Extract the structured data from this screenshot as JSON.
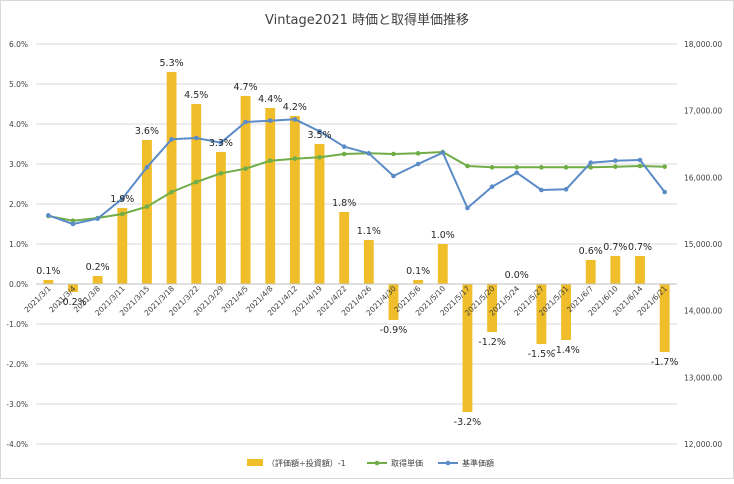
{
  "chart_data": {
    "type": "bar",
    "title": "Vintage2021 時価と取得単価推移",
    "categories": [
      "2021/3/1",
      "2021/3/4",
      "2021/3/8",
      "2021/3/11",
      "2021/3/15",
      "2021/3/18",
      "2021/3/22",
      "2021/3/29",
      "2021/4/5",
      "2021/4/8",
      "2021/4/12",
      "2021/4/19",
      "2021/4/22",
      "2021/4/26",
      "2021/4/30",
      "2021/5/6",
      "2021/5/10",
      "2021/5/17",
      "2021/5/20",
      "2021/5/24",
      "2021/5/27",
      "2021/5/31",
      "2021/6/7",
      "2021/6/10",
      "2021/6/14",
      "2021/6/21"
    ],
    "y_left": {
      "ylim": [
        -4.0,
        6.0
      ],
      "ticks": [
        "-4.0%",
        "-3.0%",
        "-2.0%",
        "-1.0%",
        "0.0%",
        "1.0%",
        "2.0%",
        "3.0%",
        "4.0%",
        "5.0%",
        "6.0%"
      ]
    },
    "y_right": {
      "ylim": [
        12000,
        18000
      ],
      "ticks": [
        "12,000.00",
        "13,000.00",
        "14,000.00",
        "15,000.00",
        "16,000.00",
        "17,000.00",
        "18,000.00"
      ]
    },
    "grid": true,
    "legend_position": "bottom",
    "series": [
      {
        "name": "（評価額÷投資額）-1",
        "type": "bar",
        "axis": "left",
        "color": "#f0be2a",
        "values": [
          0.1,
          -0.2,
          0.2,
          1.9,
          3.6,
          5.3,
          4.5,
          3.3,
          4.7,
          4.4,
          4.2,
          3.5,
          1.8,
          1.1,
          -0.9,
          0.1,
          1.0,
          -3.2,
          -1.2,
          0.0,
          -1.5,
          -1.4,
          0.6,
          0.7,
          0.7,
          -1.7
        ],
        "labels": [
          "0.1%",
          "-0.2%",
          "0.2%",
          "1.9%",
          "3.6%",
          "5.3%",
          "4.5%",
          "3.3%",
          "4.7%",
          "4.4%",
          "4.2%",
          "3.5%",
          "1.8%",
          "1.1%",
          "-0.9%",
          "0.1%",
          "1.0%",
          "-3.2%",
          "-1.2%",
          "0.0%",
          "-1.5%",
          "-1.4%",
          "0.6%",
          "0.7%",
          "0.7%",
          "-1.7%"
        ]
      },
      {
        "name": "取得単価",
        "type": "line",
        "axis": "right",
        "color": "#70ad47",
        "values": [
          15420,
          15350,
          15390,
          15450,
          15560,
          15780,
          15930,
          16060,
          16130,
          16250,
          16280,
          16300,
          16350,
          16360,
          16350,
          16360,
          16380,
          16170,
          16150,
          16150,
          16150,
          16150,
          16150,
          16160,
          16170,
          16160
        ]
      },
      {
        "name": "基準価額",
        "type": "line",
        "axis": "right",
        "color": "#5b8cc8",
        "values": [
          15430,
          15300,
          15380,
          15680,
          16150,
          16570,
          16590,
          16520,
          16830,
          16850,
          16870,
          16690,
          16460,
          16360,
          16020,
          16200,
          16370,
          15540,
          15860,
          16070,
          15810,
          15820,
          16220,
          16250,
          16260,
          15780
        ]
      }
    ]
  }
}
